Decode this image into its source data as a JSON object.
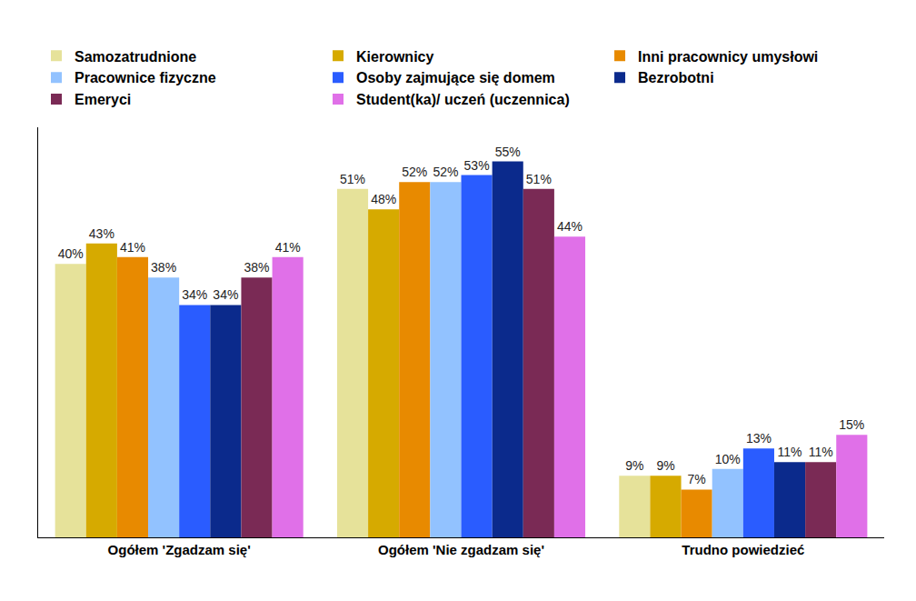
{
  "chart_data": {
    "type": "bar",
    "categories": [
      "Ogółem 'Zgadzam się'",
      "Ogółem 'Nie zgadzam się'",
      "Trudno powiedzieć"
    ],
    "series": [
      {
        "name": "Samozatrudnione",
        "color": "#e6e29a",
        "values": [
          40,
          51,
          9
        ],
        "value_labels": [
          "40%",
          "51%",
          "9%"
        ]
      },
      {
        "name": "Kierownicy",
        "color": "#d6aa00",
        "values": [
          43,
          48,
          9
        ],
        "value_labels": [
          "43%",
          "48%",
          "9%"
        ]
      },
      {
        "name": "Inni pracownicy umysłowi",
        "color": "#e88a00",
        "values": [
          41,
          52,
          7
        ],
        "value_labels": [
          "41%",
          "52%",
          "7%"
        ]
      },
      {
        "name": "Pracownice fizyczne",
        "color": "#92c2ff",
        "values": [
          38,
          52,
          10
        ],
        "value_labels": [
          "38%",
          "52%",
          "10%"
        ]
      },
      {
        "name": "Osoby zajmujące się domem",
        "color": "#2a5cff",
        "values": [
          34,
          53,
          13
        ],
        "value_labels": [
          "34%",
          "53%",
          "13%"
        ]
      },
      {
        "name": "Bezrobotni",
        "color": "#0b2a8c",
        "values": [
          34,
          55,
          11
        ],
        "value_labels": [
          "34%",
          "55%",
          "11%"
        ]
      },
      {
        "name": "Emeryci",
        "color": "#7a2a55",
        "values": [
          38,
          51,
          11
        ],
        "value_labels": [
          "38%",
          "51%",
          "11%"
        ]
      },
      {
        "name": "Student(ka)/ uczeń (uczennica)",
        "color": "#e070e8",
        "values": [
          41,
          44,
          15
        ],
        "value_labels": [
          "41%",
          "44%",
          "15%"
        ]
      }
    ],
    "ylim": [
      0,
      60
    ],
    "data_labels": true,
    "tick_labels": "x",
    "grid": false,
    "legend": "top"
  }
}
